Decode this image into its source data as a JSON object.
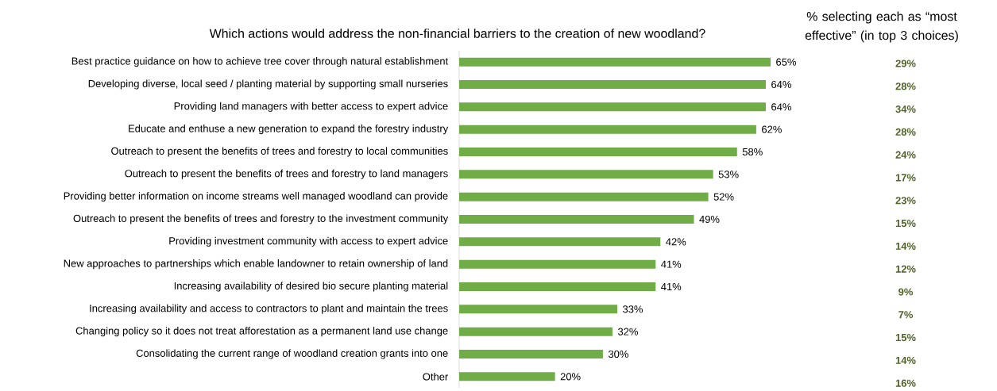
{
  "chart_data": [
    {
      "type": "bar",
      "orientation": "horizontal",
      "title": "Which actions would address the non-financial barriers to the creation of new woodland?",
      "color": "#70ad47",
      "categories": [
        "Best practice guidance on how to achieve tree cover through natural establishment",
        "Developing diverse, local seed / planting material by supporting small nurseries",
        "Providing land managers with better access to expert advice",
        "Educate and enthuse a new generation to expand the forestry industry",
        "Outreach to present the benefits of trees and forestry to local communities",
        "Outreach to present the benefits of trees and forestry to land managers",
        "Providing better information on income streams well managed woodland can provide",
        "Outreach to present the benefits of trees and forestry to the investment community",
        "Providing investment community with access to expert advice",
        "New approaches to partnerships which enable landowner to retain ownership of land",
        "Increasing availability of desired bio secure planting material",
        "Increasing availability and access to contractors to plant and maintain the trees",
        "Changing policy so it does not treat afforestation as a permanent land use change",
        "Consolidating the current range of woodland creation grants into one",
        "Other"
      ],
      "values": [
        65,
        64,
        64,
        62,
        58,
        53,
        52,
        49,
        42,
        41,
        41,
        33,
        32,
        30,
        20
      ],
      "value_labels": [
        "65%",
        "64%",
        "64%",
        "62%",
        "58%",
        "53%",
        "52%",
        "49%",
        "42%",
        "41%",
        "41%",
        "33%",
        "32%",
        "30%",
        "20%"
      ]
    },
    {
      "type": "other",
      "title": "% selecting each as “most effective” (in top 3 choices)",
      "color": "#4f6228",
      "annotations": [
        "29%",
        "28%",
        "34%",
        "28%",
        "24%",
        "17%",
        "23%",
        "15%",
        "14%",
        "12%",
        "9%",
        "7%",
        "15%",
        "14%",
        "16%"
      ]
    }
  ]
}
